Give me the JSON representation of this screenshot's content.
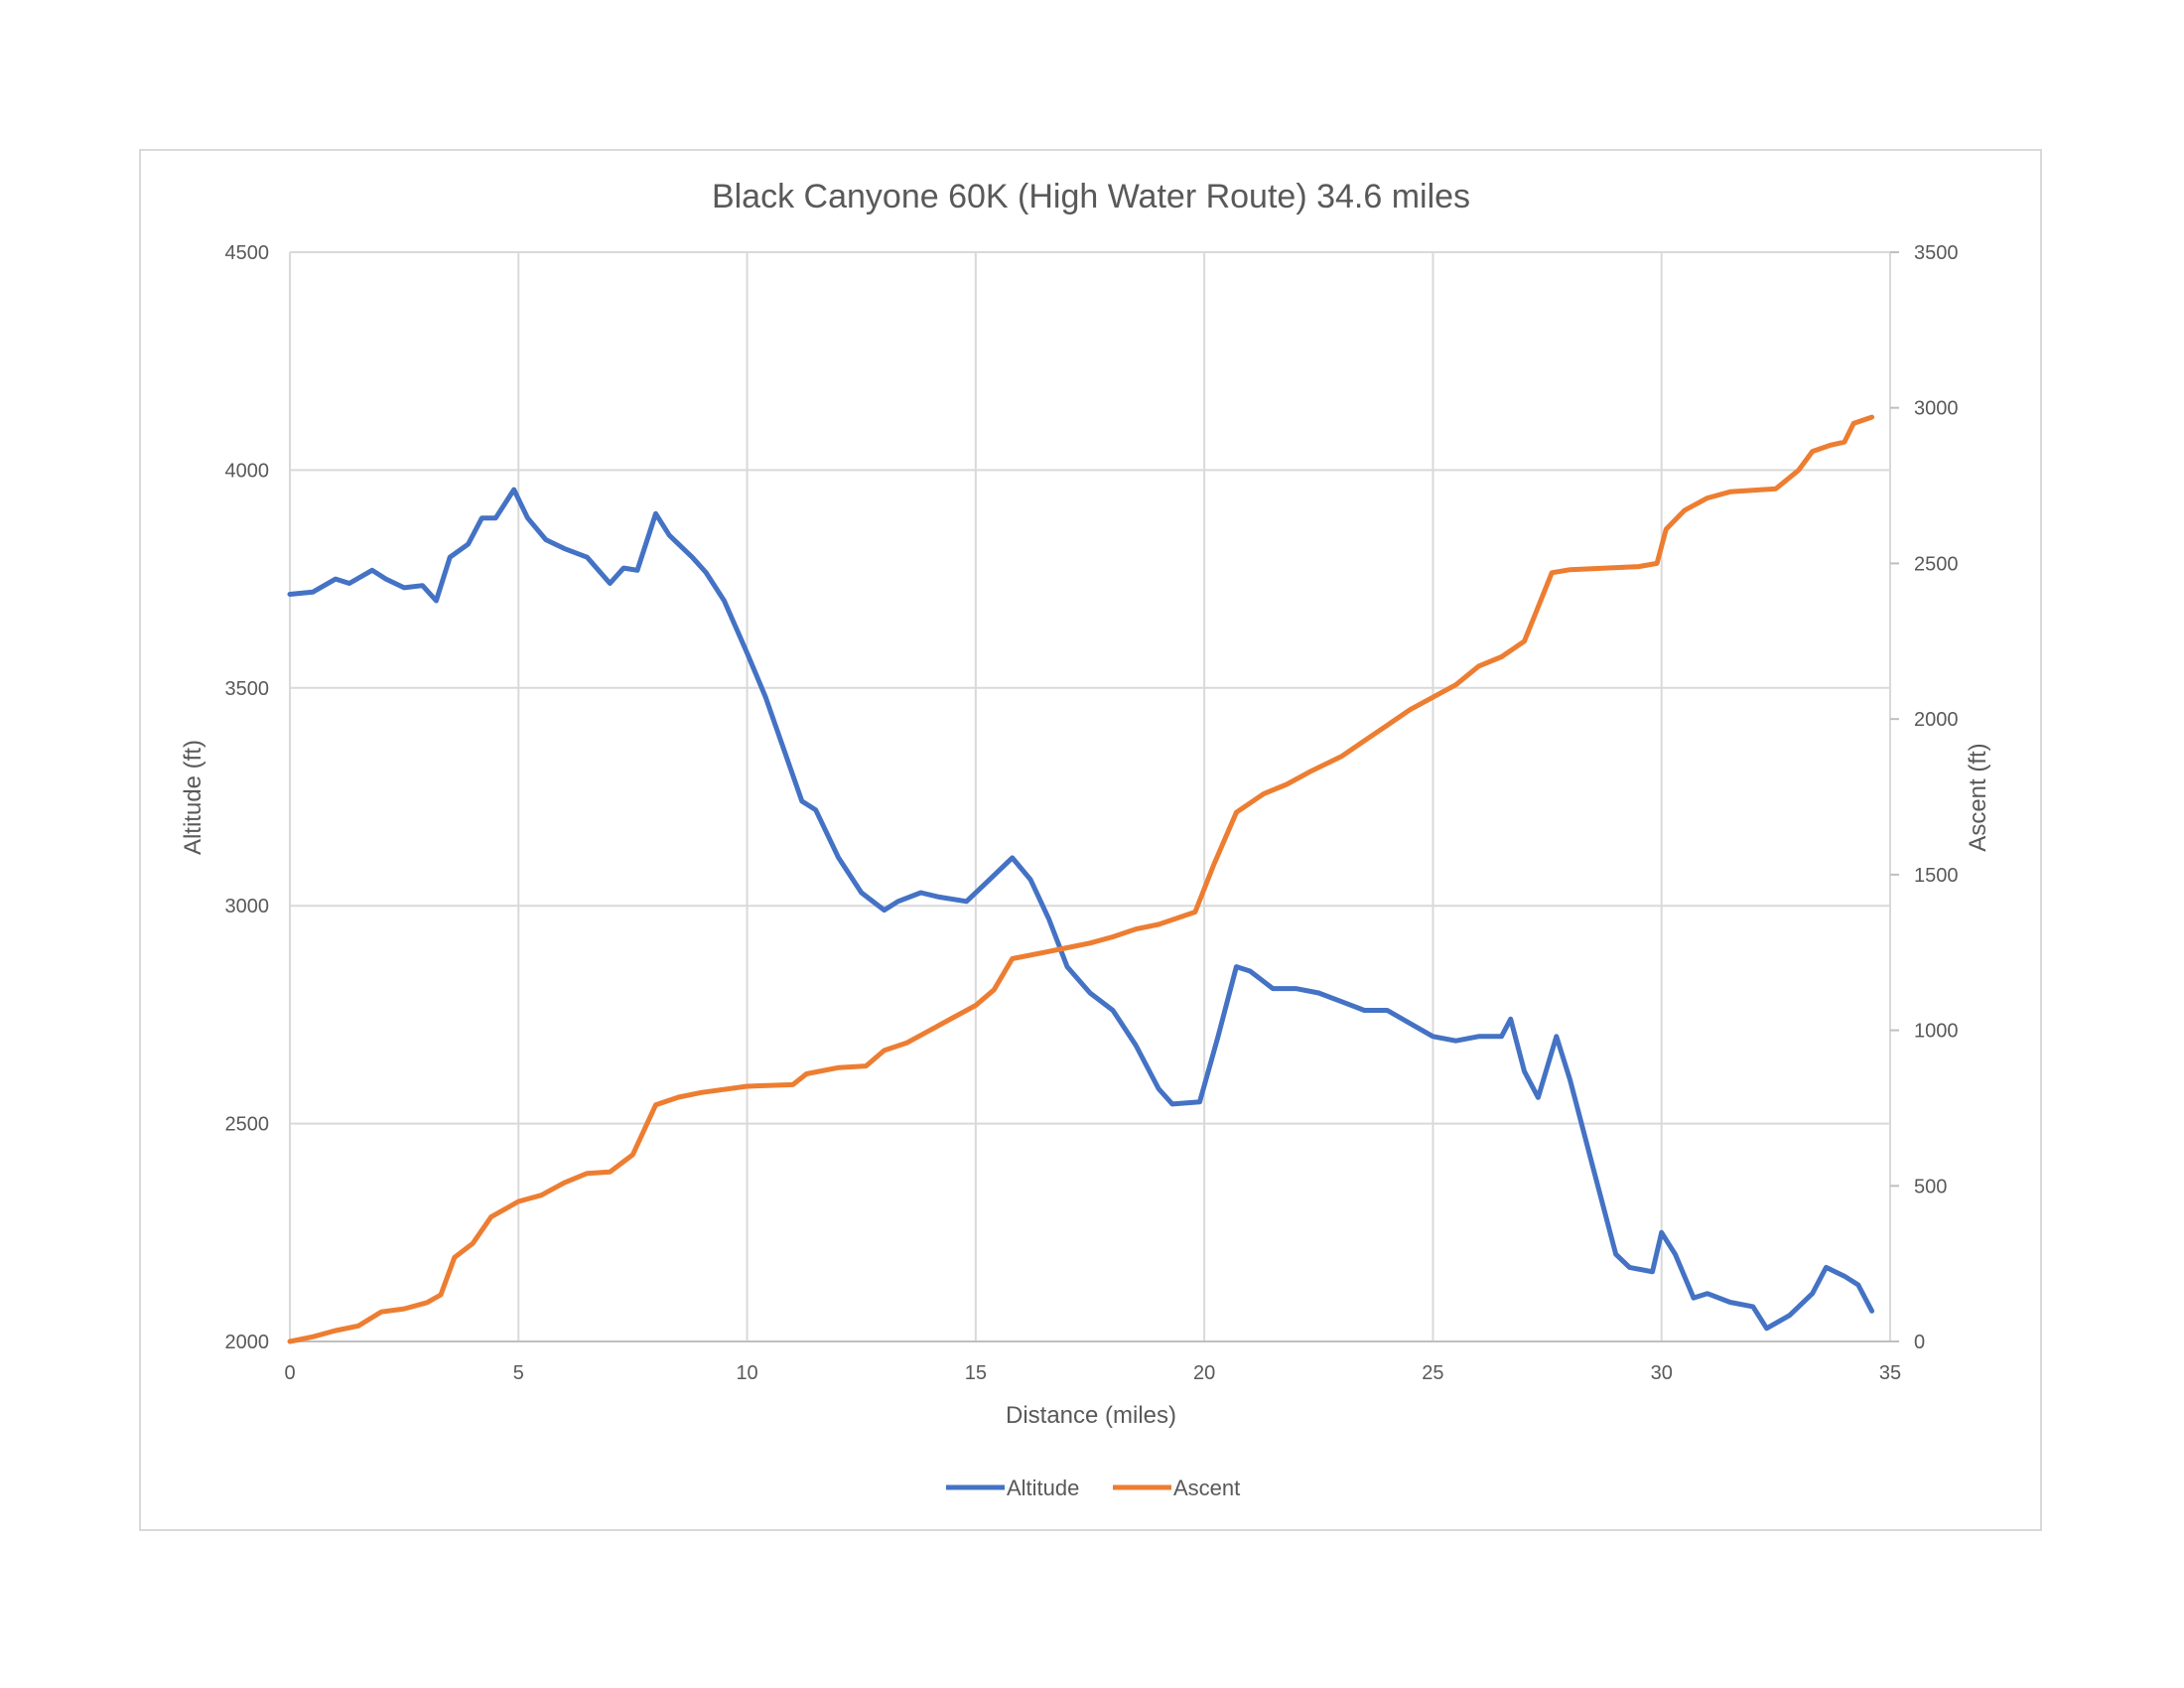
{
  "chart_data": {
    "type": "line",
    "title": "Black Canyone 60K (High Water Route) 34.6 miles",
    "xlabel": "Distance (miles)",
    "ylabel": "Altitude (ft)",
    "y2label": "Ascent (ft)",
    "xlim": [
      0,
      35
    ],
    "ylim": [
      2000,
      4500
    ],
    "y2lim": [
      0,
      3500
    ],
    "xticks": [
      0,
      5,
      10,
      15,
      20,
      25,
      30,
      35
    ],
    "yticks": [
      2000,
      2500,
      3000,
      3500,
      4000,
      4500
    ],
    "y2ticks": [
      0,
      500,
      1000,
      1500,
      2000,
      2500,
      3000,
      3500
    ],
    "grid": true,
    "legend_position": "bottom",
    "series": [
      {
        "name": "Altitude",
        "axis": "left",
        "color": "#4472C4",
        "points": [
          [
            0,
            3715
          ],
          [
            0.5,
            3720
          ],
          [
            1,
            3750
          ],
          [
            1.3,
            3740
          ],
          [
            1.8,
            3770
          ],
          [
            2.1,
            3750
          ],
          [
            2.5,
            3730
          ],
          [
            2.9,
            3735
          ],
          [
            3.2,
            3700
          ],
          [
            3.5,
            3800
          ],
          [
            3.9,
            3830
          ],
          [
            4.2,
            3890
          ],
          [
            4.5,
            3890
          ],
          [
            4.9,
            3955
          ],
          [
            5.2,
            3890
          ],
          [
            5.6,
            3840
          ],
          [
            6,
            3820
          ],
          [
            6.5,
            3800
          ],
          [
            7,
            3740
          ],
          [
            7.3,
            3775
          ],
          [
            7.6,
            3770
          ],
          [
            8,
            3900
          ],
          [
            8.3,
            3850
          ],
          [
            8.8,
            3800
          ],
          [
            9.1,
            3765
          ],
          [
            9.5,
            3700
          ],
          [
            10,
            3580
          ],
          [
            10.4,
            3480
          ],
          [
            10.9,
            3330
          ],
          [
            11.2,
            3240
          ],
          [
            11.5,
            3220
          ],
          [
            12,
            3110
          ],
          [
            12.5,
            3030
          ],
          [
            13,
            2990
          ],
          [
            13.3,
            3010
          ],
          [
            13.8,
            3030
          ],
          [
            14.2,
            3020
          ],
          [
            14.8,
            3010
          ],
          [
            15.2,
            3050
          ],
          [
            15.8,
            3110
          ],
          [
            16.2,
            3060
          ],
          [
            16.6,
            2970
          ],
          [
            17,
            2860
          ],
          [
            17.5,
            2800
          ],
          [
            18,
            2760
          ],
          [
            18.5,
            2680
          ],
          [
            19,
            2580
          ],
          [
            19.3,
            2545
          ],
          [
            19.9,
            2550
          ],
          [
            20.3,
            2700
          ],
          [
            20.7,
            2860
          ],
          [
            21,
            2850
          ],
          [
            21.5,
            2810
          ],
          [
            22,
            2810
          ],
          [
            22.5,
            2800
          ],
          [
            23,
            2780
          ],
          [
            23.5,
            2760
          ],
          [
            24,
            2760
          ],
          [
            24.5,
            2730
          ],
          [
            25,
            2700
          ],
          [
            25.5,
            2690
          ],
          [
            26,
            2700
          ],
          [
            26.5,
            2700
          ],
          [
            26.7,
            2740
          ],
          [
            27,
            2620
          ],
          [
            27.3,
            2560
          ],
          [
            27.7,
            2700
          ],
          [
            28,
            2600
          ],
          [
            28.5,
            2400
          ],
          [
            29,
            2200
          ],
          [
            29.3,
            2170
          ],
          [
            29.8,
            2160
          ],
          [
            30,
            2250
          ],
          [
            30.3,
            2200
          ],
          [
            30.7,
            2100
          ],
          [
            31,
            2110
          ],
          [
            31.5,
            2090
          ],
          [
            32,
            2080
          ],
          [
            32.3,
            2030
          ],
          [
            32.8,
            2060
          ],
          [
            33.3,
            2110
          ],
          [
            33.6,
            2170
          ],
          [
            34,
            2150
          ],
          [
            34.3,
            2130
          ],
          [
            34.6,
            2070
          ]
        ]
      },
      {
        "name": "Ascent",
        "axis": "right",
        "color": "#ED7D31",
        "points": [
          [
            0,
            0
          ],
          [
            0.5,
            15
          ],
          [
            1,
            35
          ],
          [
            1.5,
            50
          ],
          [
            2,
            95
          ],
          [
            2.5,
            105
          ],
          [
            3,
            125
          ],
          [
            3.3,
            150
          ],
          [
            3.6,
            270
          ],
          [
            4,
            315
          ],
          [
            4.4,
            400
          ],
          [
            5,
            450
          ],
          [
            5.5,
            470
          ],
          [
            6,
            510
          ],
          [
            6.5,
            540
          ],
          [
            7,
            545
          ],
          [
            7.5,
            600
          ],
          [
            8,
            760
          ],
          [
            8.5,
            785
          ],
          [
            9,
            800
          ],
          [
            10,
            820
          ],
          [
            11,
            825
          ],
          [
            11.3,
            860
          ],
          [
            12,
            880
          ],
          [
            12.6,
            885
          ],
          [
            13,
            935
          ],
          [
            13.5,
            960
          ],
          [
            14,
            1000
          ],
          [
            14.5,
            1040
          ],
          [
            15,
            1080
          ],
          [
            15.4,
            1130
          ],
          [
            15.8,
            1230
          ],
          [
            16.5,
            1250
          ],
          [
            17,
            1265
          ],
          [
            17.5,
            1280
          ],
          [
            18,
            1300
          ],
          [
            18.5,
            1325
          ],
          [
            19,
            1340
          ],
          [
            19.8,
            1380
          ],
          [
            20.2,
            1530
          ],
          [
            20.7,
            1700
          ],
          [
            21.3,
            1760
          ],
          [
            21.8,
            1790
          ],
          [
            22.3,
            1830
          ],
          [
            23,
            1880
          ],
          [
            23.5,
            1930
          ],
          [
            24,
            1980
          ],
          [
            24.5,
            2030
          ],
          [
            25,
            2070
          ],
          [
            25.5,
            2110
          ],
          [
            26,
            2170
          ],
          [
            26.5,
            2200
          ],
          [
            27,
            2250
          ],
          [
            27.3,
            2360
          ],
          [
            27.6,
            2470
          ],
          [
            28,
            2480
          ],
          [
            29.5,
            2490
          ],
          [
            29.9,
            2500
          ],
          [
            30.1,
            2610
          ],
          [
            30.5,
            2670
          ],
          [
            31,
            2710
          ],
          [
            31.5,
            2730
          ],
          [
            32,
            2735
          ],
          [
            32.5,
            2740
          ],
          [
            33,
            2800
          ],
          [
            33.3,
            2860
          ],
          [
            33.7,
            2880
          ],
          [
            34,
            2890
          ],
          [
            34.2,
            2950
          ],
          [
            34.6,
            2970
          ]
        ]
      }
    ]
  }
}
